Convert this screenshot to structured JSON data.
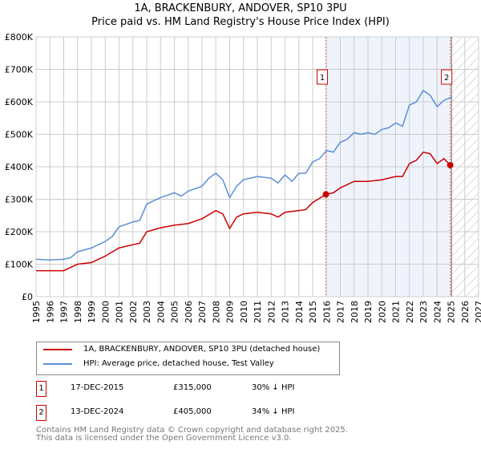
{
  "title": "1A, BRACKENBURY, ANDOVER, SP10 3PU",
  "subtitle": "Price paid vs. HM Land Registry's House Price Index (HPI)",
  "chart_data": {
    "type": "line",
    "title": "1A, BRACKENBURY, ANDOVER, SP10 3PU",
    "subtitle": "Price paid vs. HM Land Registry's House Price Index (HPI)",
    "xlim": [
      1995,
      2027
    ],
    "ylim": [
      0,
      800000
    ],
    "x_ticks": [
      "1995",
      "1996",
      "1997",
      "1998",
      "1999",
      "2000",
      "2001",
      "2002",
      "2003",
      "2004",
      "2005",
      "2006",
      "2007",
      "2008",
      "2009",
      "2010",
      "2011",
      "2012",
      "2013",
      "2014",
      "2015",
      "2016",
      "2017",
      "2018",
      "2019",
      "2020",
      "2021",
      "2022",
      "2023",
      "2024",
      "2025",
      "2026",
      "2027"
    ],
    "y_ticks": [
      {
        "v": 0,
        "label": "£0"
      },
      {
        "v": 100000,
        "label": "£100K"
      },
      {
        "v": 200000,
        "label": "£200K"
      },
      {
        "v": 300000,
        "label": "£300K"
      },
      {
        "v": 400000,
        "label": "£400K"
      },
      {
        "v": 500000,
        "label": "£500K"
      },
      {
        "v": 600000,
        "label": "£600K"
      },
      {
        "v": 700000,
        "label": "£700K"
      },
      {
        "v": 800000,
        "label": "£800K"
      }
    ],
    "grid": true,
    "series": [
      {
        "name": "1A, BRACKENBURY, ANDOVER, SP10 3PU (detached house)",
        "color": "#cc0000",
        "x": [
          1995,
          1996,
          1997,
          1998,
          1999,
          2000,
          2001,
          2002,
          2002.5,
          2003,
          2004,
          2005,
          2006,
          2007,
          2008,
          2008.5,
          2009,
          2009.5,
          2010,
          2011,
          2012,
          2012.5,
          2013,
          2014,
          2014.5,
          2015,
          2015.96,
          2016.5,
          2017,
          2018,
          2019,
          2020,
          2021,
          2021.5,
          2022,
          2022.5,
          2023,
          2023.5,
          2024,
          2024.5,
          2024.95
        ],
        "y": [
          80000,
          80000,
          80000,
          100000,
          105000,
          125000,
          150000,
          160000,
          165000,
          200000,
          212000,
          220000,
          225000,
          240000,
          265000,
          255000,
          210000,
          245000,
          255000,
          260000,
          255000,
          245000,
          260000,
          265000,
          268000,
          290000,
          315000,
          320000,
          335000,
          355000,
          355000,
          360000,
          370000,
          370000,
          410000,
          420000,
          445000,
          440000,
          410000,
          425000,
          405000
        ]
      },
      {
        "name": "HPI: Average price, detached house, Test Valley",
        "color": "#5b8fd4",
        "x": [
          1995,
          1996,
          1997,
          1997.5,
          1998,
          1999,
          2000,
          2000.5,
          2001,
          2002,
          2002.5,
          2003,
          2004,
          2005,
          2005.5,
          2006,
          2007,
          2007.5,
          2008,
          2008.5,
          2009,
          2009.5,
          2010,
          2011,
          2012,
          2012.5,
          2013,
          2013.5,
          2014,
          2014.5,
          2015,
          2015.5,
          2016,
          2016.5,
          2017,
          2017.5,
          2018,
          2018.5,
          2019,
          2019.5,
          2020,
          2020.5,
          2021,
          2021.5,
          2022,
          2022.5,
          2023,
          2023.5,
          2024,
          2024.5,
          2025.1
        ],
        "y": [
          115000,
          113000,
          115000,
          120000,
          138000,
          150000,
          170000,
          185000,
          215000,
          230000,
          235000,
          285000,
          305000,
          320000,
          310000,
          325000,
          340000,
          365000,
          380000,
          360000,
          305000,
          340000,
          360000,
          370000,
          365000,
          350000,
          375000,
          355000,
          380000,
          380000,
          415000,
          425000,
          450000,
          445000,
          475000,
          485000,
          505000,
          500000,
          505000,
          500000,
          515000,
          520000,
          535000,
          525000,
          590000,
          600000,
          635000,
          620000,
          585000,
          605000,
          615000
        ]
      }
    ],
    "sales": [
      {
        "label": "1",
        "x": 2015.96,
        "y": 315000
      },
      {
        "label": "2",
        "x": 2024.95,
        "y": 405000
      }
    ],
    "shaded_range": [
      2015.96,
      2024.95
    ],
    "hatched_from": 2025.05
  },
  "legend": [
    {
      "label": "1A, BRACKENBURY, ANDOVER, SP10 3PU (detached house)",
      "color": "#cc0000"
    },
    {
      "label": "HPI: Average price, detached house, Test Valley",
      "color": "#5b8fd4"
    }
  ],
  "transactions": [
    {
      "num": "1",
      "date": "17-DEC-2015",
      "price": "£315,000",
      "hpi": "30% ↓ HPI"
    },
    {
      "num": "2",
      "date": "13-DEC-2024",
      "price": "£405,000",
      "hpi": "34% ↓ HPI"
    }
  ],
  "footer": [
    "Contains HM Land Registry data © Crown copyright and database right 2025.",
    "This data is licensed under the Open Government Licence v3.0."
  ]
}
